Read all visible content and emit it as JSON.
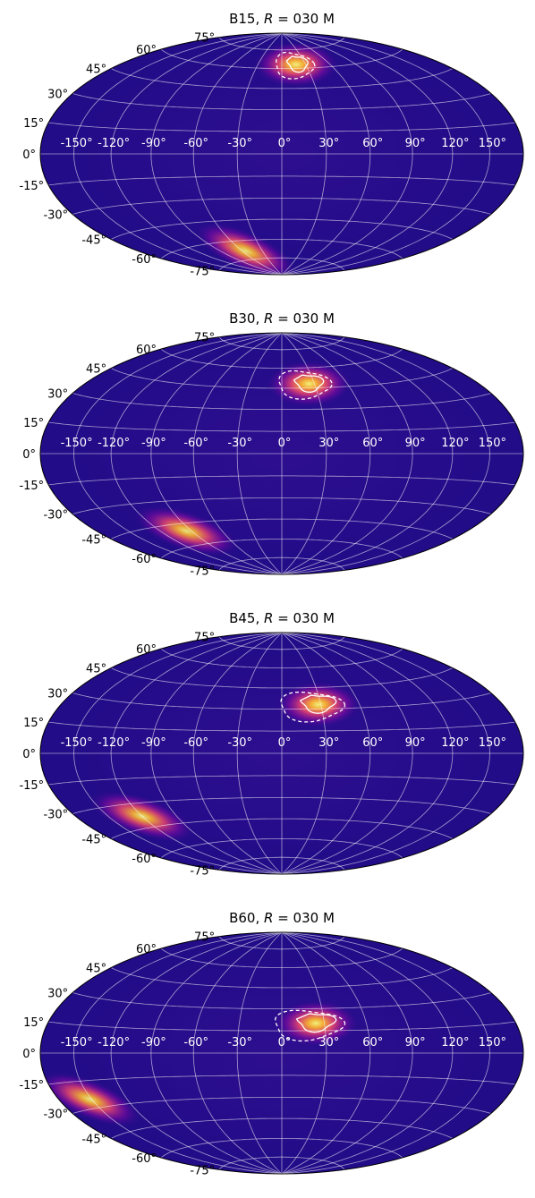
{
  "chart_data": [
    {
      "type": "heatmap",
      "projection": "hammer",
      "title_prefix": "B15, ",
      "title_var": "R",
      "title_suffix": " = 030 M",
      "lon_ticks": [
        "-150°",
        "-120°",
        "-90°",
        "-60°",
        "-30°",
        "0°",
        "30°",
        "60°",
        "90°",
        "120°",
        "150°"
      ],
      "lat_ticks": [
        "75°",
        "60°",
        "45°",
        "30°",
        "15°",
        "0°",
        "-15°",
        "-30°",
        "-45°",
        "-60°",
        "-75°"
      ],
      "grid": true,
      "colormap": "plasma",
      "hotspots": [
        {
          "lon": 18,
          "lat": 63,
          "intensity": 0.95
        },
        {
          "lon": -55,
          "lat": -68,
          "intensity": 0.9
        }
      ],
      "contours": [
        {
          "style": "solid",
          "lon": 20,
          "lat": 64
        },
        {
          "style": "dashed",
          "lon": 15,
          "lat": 63
        }
      ]
    },
    {
      "type": "heatmap",
      "projection": "hammer",
      "title_prefix": "B30, ",
      "title_var": "R",
      "title_suffix": " = 030 M",
      "lon_ticks": [
        "-150°",
        "-120°",
        "-90°",
        "-60°",
        "-30°",
        "0°",
        "30°",
        "60°",
        "90°",
        "120°",
        "150°"
      ],
      "lat_ticks": [
        "75°",
        "60°",
        "45°",
        "30°",
        "15°",
        "0°",
        "-15°",
        "-30°",
        "-45°",
        "-60°",
        "-75°"
      ],
      "grid": true,
      "colormap": "plasma",
      "hotspots": [
        {
          "lon": 25,
          "lat": 48,
          "intensity": 0.95
        },
        {
          "lon": -95,
          "lat": -50,
          "intensity": 0.9
        }
      ],
      "contours": [
        {
          "style": "solid",
          "lon": 25,
          "lat": 49
        },
        {
          "style": "dashed",
          "lon": 20,
          "lat": 48
        }
      ]
    },
    {
      "type": "heatmap",
      "projection": "hammer",
      "title_prefix": "B45, ",
      "title_var": "R",
      "title_suffix": " = 030 M",
      "lon_ticks": [
        "-150°",
        "-120°",
        "-90°",
        "-60°",
        "-30°",
        "0°",
        "30°",
        "60°",
        "90°",
        "120°",
        "150°"
      ],
      "lat_ticks": [
        "75°",
        "60°",
        "45°",
        "30°",
        "15°",
        "0°",
        "-15°",
        "-30°",
        "-45°",
        "-60°",
        "-75°"
      ],
      "grid": true,
      "colormap": "plasma",
      "hotspots": [
        {
          "lon": 28,
          "lat": 33,
          "intensity": 0.95
        },
        {
          "lon": -120,
          "lat": -38,
          "intensity": 0.9
        }
      ],
      "contours": [
        {
          "style": "solid",
          "lon": 28,
          "lat": 34
        },
        {
          "style": "dashed",
          "lon": 22,
          "lat": 32
        }
      ]
    },
    {
      "type": "heatmap",
      "projection": "hammer",
      "title_prefix": "B60, ",
      "title_var": "R",
      "title_suffix": " = 030 M",
      "lon_ticks": [
        "-150°",
        "-120°",
        "-90°",
        "-60°",
        "-30°",
        "0°",
        "30°",
        "60°",
        "90°",
        "120°",
        "150°"
      ],
      "lat_ticks": [
        "75°",
        "60°",
        "45°",
        "30°",
        "15°",
        "0°",
        "-15°",
        "-30°",
        "-45°",
        "-60°",
        "-75°"
      ],
      "grid": true,
      "colormap": "plasma",
      "hotspots": [
        {
          "lon": 24,
          "lat": 20,
          "intensity": 0.95
        },
        {
          "lon": -152,
          "lat": -25,
          "intensity": 0.9
        }
      ],
      "contours": [
        {
          "style": "solid",
          "lon": 24,
          "lat": 21
        },
        {
          "style": "dashed",
          "lon": 18,
          "lat": 19
        }
      ]
    }
  ]
}
